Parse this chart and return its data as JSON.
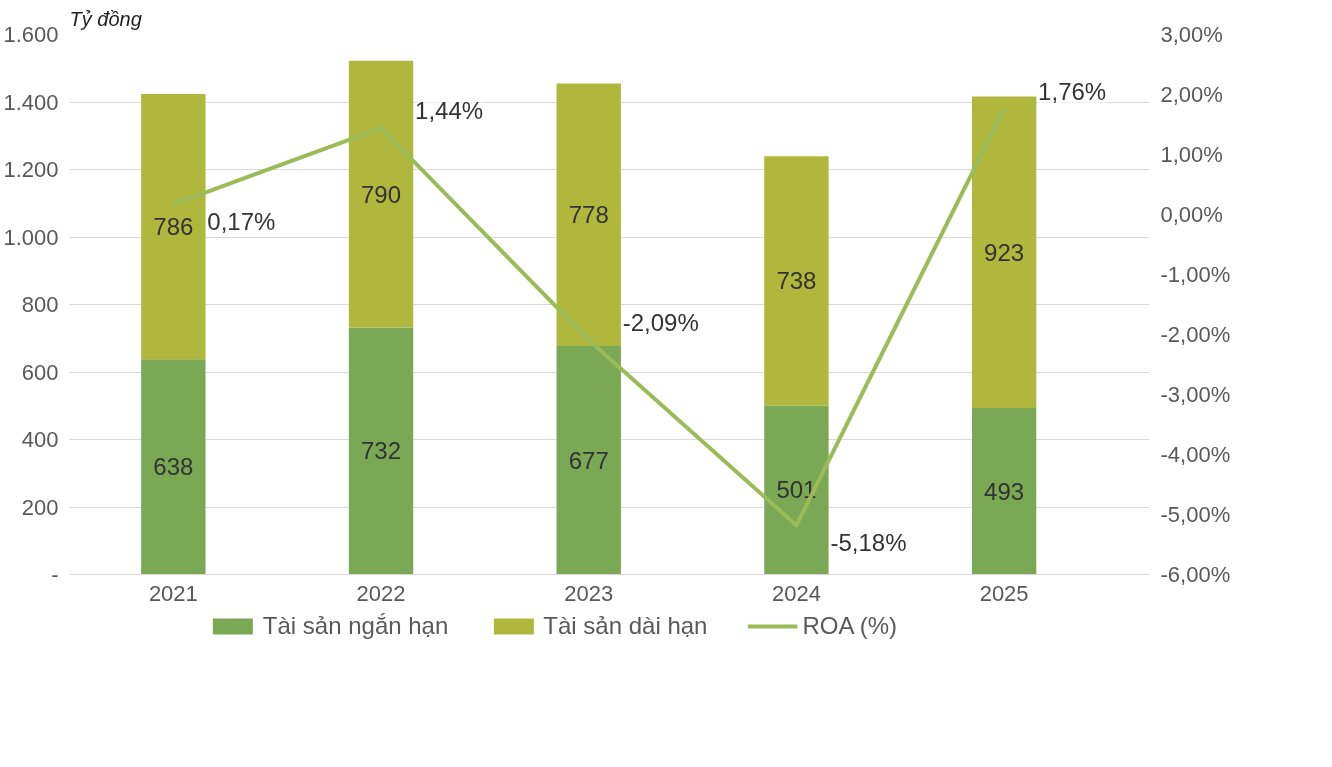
{
  "chart_data": {
    "type": "bar",
    "ylabel": "Tỷ đồng",
    "categories": [
      "2021",
      "2022",
      "2023",
      "2024",
      "2025"
    ],
    "stacked": true,
    "series": [
      {
        "name": "Tài sản ngắn hạn",
        "color": "#7aa854",
        "values": [
          638,
          732,
          677,
          501,
          493
        ],
        "value_labels": [
          "638",
          "732",
          "677",
          "501",
          "493"
        ]
      },
      {
        "name": "Tài sản dài hạn",
        "color": "#afb83c",
        "values": [
          786,
          790,
          778,
          738,
          923
        ],
        "value_labels": [
          "786",
          "790",
          "778",
          "738",
          "923"
        ]
      },
      {
        "name": "ROA (%)",
        "type": "line",
        "axis": "y2",
        "color": "#9bbb59",
        "values": [
          0.17,
          1.44,
          -2.09,
          -5.18,
          1.76
        ],
        "value_labels": [
          "0,17%",
          "1,44%",
          "-2,09%",
          "-5,18%",
          "1,76%"
        ]
      }
    ],
    "ylim": [
      0,
      1600
    ],
    "yticks": [
      {
        "value": 0,
        "label": "-"
      },
      200,
      400,
      600,
      800,
      {
        "value": 1000,
        "label": "1.000"
      },
      {
        "value": 1200,
        "label": "1.200"
      },
      {
        "value": 1400,
        "label": "1.400"
      },
      {
        "value": 1600,
        "label": "1.600"
      }
    ],
    "y2lim": [
      -6,
      3
    ],
    "y2ticks": [
      {
        "value": -6,
        "label": "-6,00%"
      },
      {
        "value": -5,
        "label": "-5,00%"
      },
      {
        "value": -4,
        "label": "-4,00%"
      },
      {
        "value": -3,
        "label": "-3,00%"
      },
      {
        "value": -2,
        "label": "-2,00%"
      },
      {
        "value": -1,
        "label": "-1,00%"
      },
      {
        "value": 0,
        "label": "0,00%"
      },
      {
        "value": 1,
        "label": "1,00%"
      },
      {
        "value": 2,
        "label": "2,00%"
      },
      {
        "value": 3,
        "label": "3,00%"
      }
    ],
    "grid": "y",
    "legend": "bottom"
  }
}
